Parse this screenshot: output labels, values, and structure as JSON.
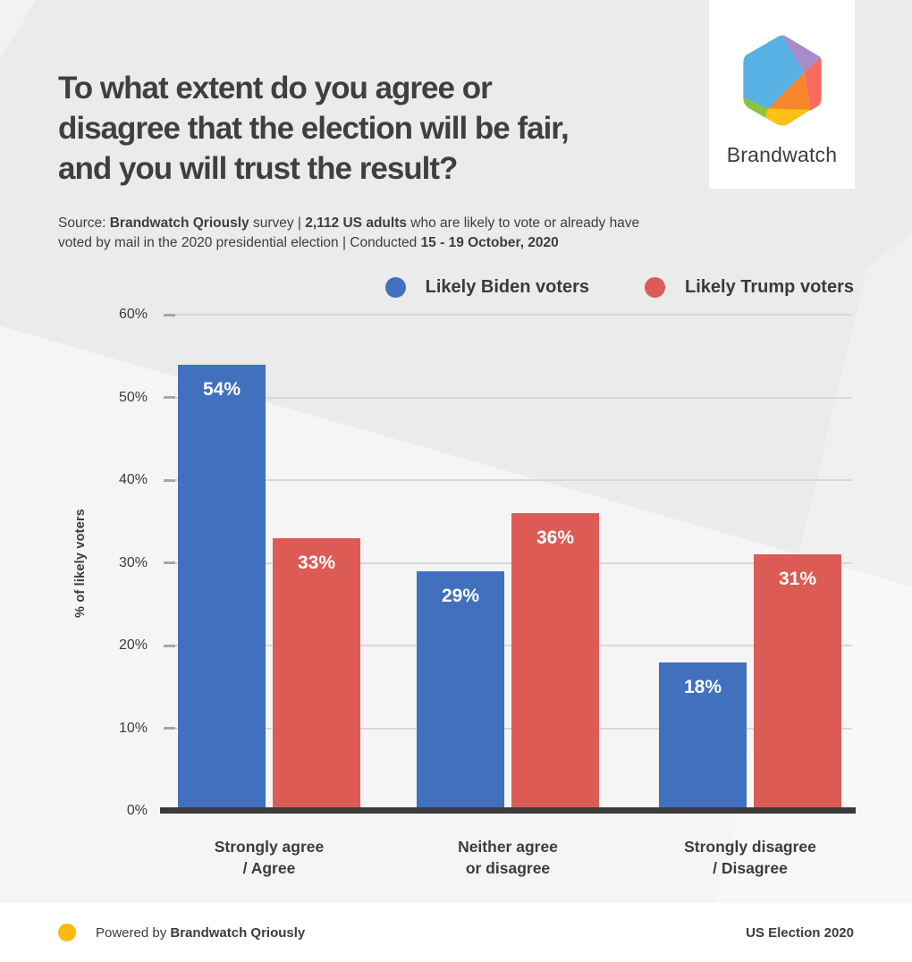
{
  "header": {
    "title_lines": [
      "To what extent do you agree or",
      "disagree that the election will be fair,",
      "and you will trust the result?"
    ]
  },
  "source": {
    "lines": [
      [
        {
          "t": "Source: ",
          "b": 0
        },
        {
          "t": "Brandwatch Qriously",
          "b": 1
        },
        {
          "t": " survey | ",
          "b": 0
        },
        {
          "t": "2,112 US adults",
          "b": 1
        },
        {
          "t": " who are likely to vote or already have",
          "b": 0
        }
      ],
      [
        {
          "t": "voted by mail in the 2020 presidential election | Conducted ",
          "b": 0
        },
        {
          "t": "15 - 19 October, 2020",
          "b": 1
        }
      ]
    ]
  },
  "logo": {
    "brand": "Brandwatch",
    "colors": {
      "blue": "#58B1E4",
      "purple": "#A88BC9",
      "coral": "#F96B5D",
      "orange": "#F6862B",
      "yellow": "#FDC013",
      "green": "#8BC540"
    }
  },
  "chart_data": {
    "type": "bar",
    "title": "To what extent do you agree or disagree that the election will be fair, and you will trust the result?",
    "ylabel": "% of likely voters",
    "ylim": [
      0,
      60
    ],
    "yticks": [
      0,
      10,
      20,
      30,
      40,
      50,
      60
    ],
    "ytick_suffix": "%",
    "value_suffix": "%",
    "grid": true,
    "legend_position": "top-right",
    "categories": [
      [
        "Strongly agree",
        "/ Agree"
      ],
      [
        "Neither agree",
        "or disagree"
      ],
      [
        "Strongly disagree",
        "/ Disagree"
      ]
    ],
    "series": [
      {
        "name": "Likely Biden voters",
        "color": "#4170BE",
        "values": [
          54,
          29,
          18
        ]
      },
      {
        "name": "Likely Trump voters",
        "color": "#DC5B55",
        "values": [
          33,
          36,
          31
        ]
      }
    ]
  },
  "footer": {
    "powered_prefix": "Powered by ",
    "powered_brand": "Brandwatch Qriously",
    "right_label": "US Election 2020",
    "dot_color": "#FBBA12"
  },
  "colors": {
    "background": "#EBEBEB",
    "background_light": "#F5F5F5",
    "text": "#3C3C3C",
    "grid": "#D8D8D8",
    "axis": "#3B3B3B"
  }
}
